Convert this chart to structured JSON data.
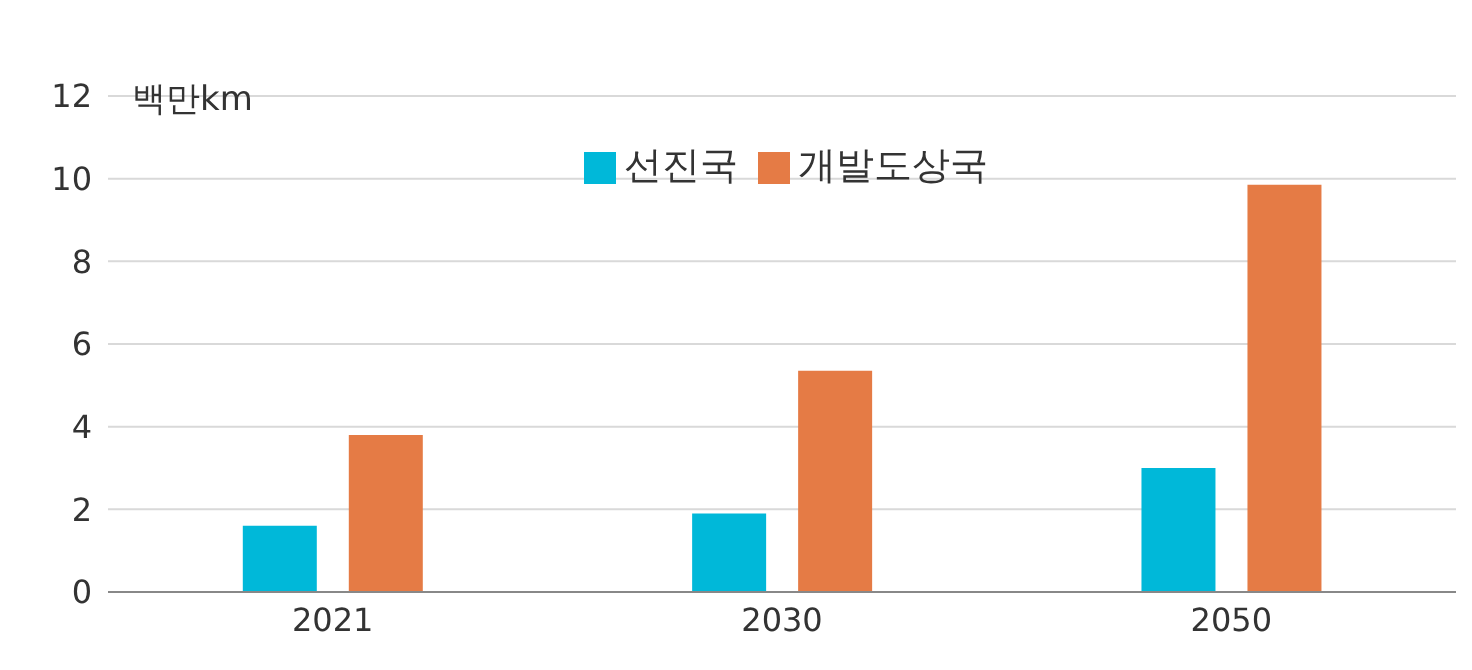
{
  "chart_data": {
    "type": "bar",
    "ylabel": "백만km",
    "categories": [
      "2021",
      "2030",
      "2050"
    ],
    "series": [
      {
        "name": "선진국",
        "color": "#00b8d9",
        "values": [
          1.6,
          1.9,
          3.0
        ]
      },
      {
        "name": "개발도상국",
        "color": "#e57b45",
        "values": [
          3.8,
          5.35,
          9.85
        ]
      }
    ],
    "ylim": [
      0,
      12
    ],
    "yticks": [
      0,
      2,
      4,
      6,
      8,
      10,
      12
    ],
    "grid": "y",
    "legend": "top"
  }
}
